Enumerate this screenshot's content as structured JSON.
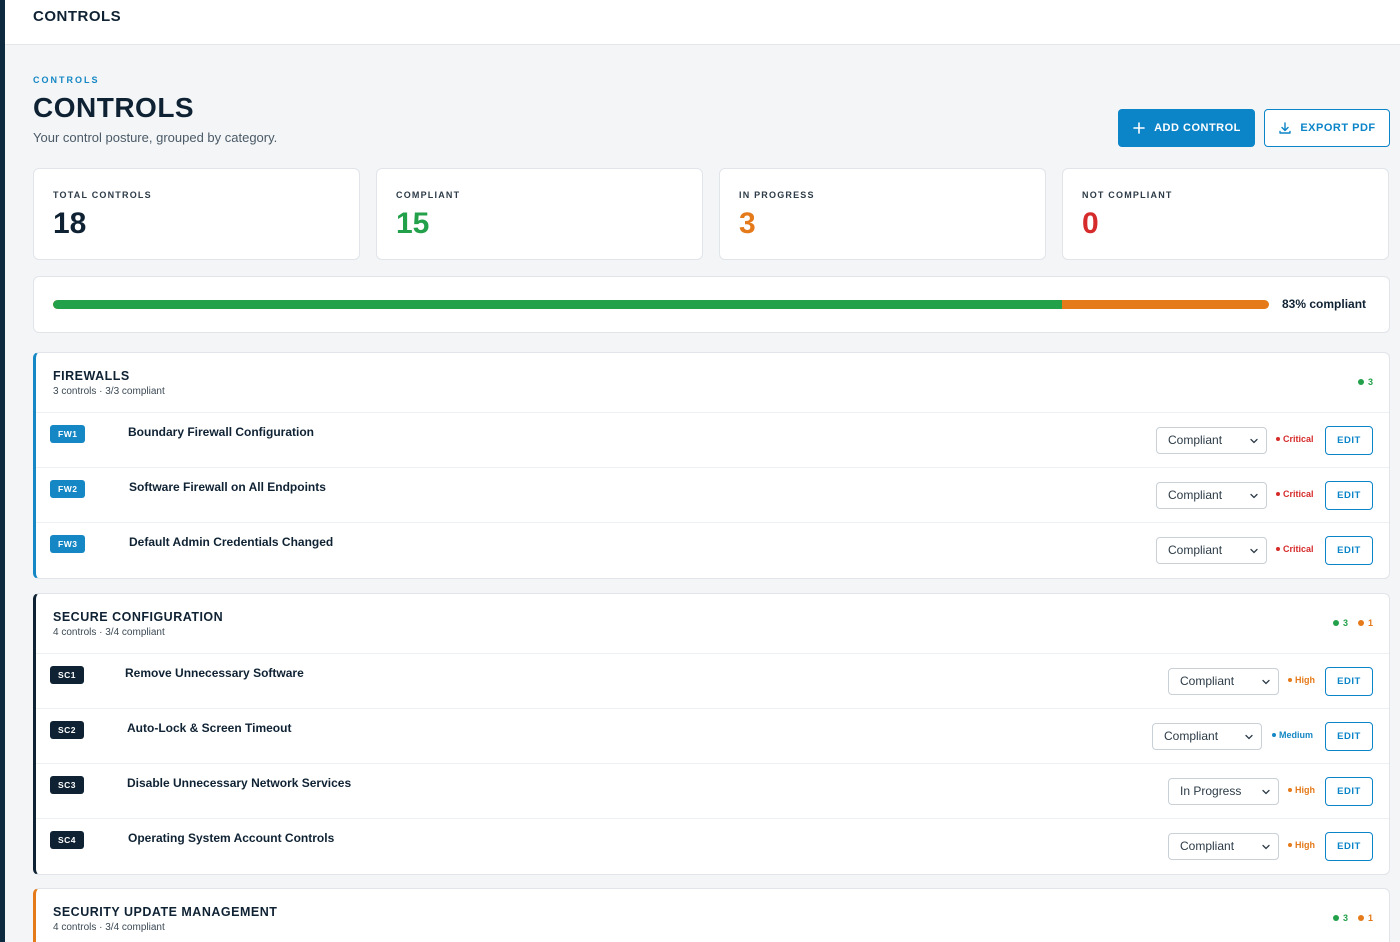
{
  "topbar": {
    "title": "CONTROLS"
  },
  "header": {
    "eyebrow": "CONTROLS",
    "title": "CONTROLS",
    "subtitle": "Your control posture, grouped by category.",
    "add_button": "ADD CONTROL",
    "export_button": "EXPORT PDF"
  },
  "stats": {
    "total": {
      "label": "TOTAL CONTROLS",
      "value": "18"
    },
    "compliant": {
      "label": "COMPLIANT",
      "value": "15"
    },
    "in_progress": {
      "label": "IN PROGRESS",
      "value": "3"
    },
    "not_compliant": {
      "label": "NOT COMPLIANT",
      "value": "0"
    }
  },
  "progress": {
    "compliant_fraction": 0.83,
    "label": "83% compliant"
  },
  "colors": {
    "accent": "#0b84c8",
    "compliant": "#22a04a",
    "in_progress": "#e47a1a",
    "not_compliant": "#d62b2b",
    "navy": "#0f2233"
  },
  "categories": [
    {
      "title": "FIREWALLS",
      "meta": "3 controls · 3/3 compliant",
      "accent": "#1487c4",
      "badge_color": "#1487c4",
      "compliant_count": "3",
      "in_progress_count": "",
      "controls": [
        {
          "code": "FW1",
          "title": "Boundary Firewall Configuration",
          "status": "Compliant",
          "severity": "Critical"
        },
        {
          "code": "FW2",
          "title": "Software Firewall on All Endpoints",
          "status": "Compliant",
          "severity": "Critical"
        },
        {
          "code": "FW3",
          "title": "Default Admin Credentials Changed",
          "status": "Compliant",
          "severity": "Critical"
        }
      ]
    },
    {
      "title": "SECURE CONFIGURATION",
      "meta": "4 controls · 3/4 compliant",
      "accent": "#0f2233",
      "badge_color": "#0f2233",
      "compliant_count": "3",
      "in_progress_count": "1",
      "controls": [
        {
          "code": "SC1",
          "title": "Remove Unnecessary Software",
          "status": "Compliant",
          "severity": "High"
        },
        {
          "code": "SC2",
          "title": "Auto-Lock & Screen Timeout",
          "status": "Compliant",
          "severity": "Medium"
        },
        {
          "code": "SC3",
          "title": "Disable Unnecessary Network Services",
          "status": "In Progress",
          "severity": "High"
        },
        {
          "code": "SC4",
          "title": "Operating System Account Controls",
          "status": "Compliant",
          "severity": "High"
        }
      ]
    },
    {
      "title": "SECURITY UPDATE MANAGEMENT",
      "meta": "4 controls · 3/4 compliant",
      "accent": "#e47a1a",
      "badge_color": "#e47a1a",
      "compliant_count": "3",
      "in_progress_count": "1",
      "controls": []
    }
  ],
  "row_action_label": "EDIT"
}
